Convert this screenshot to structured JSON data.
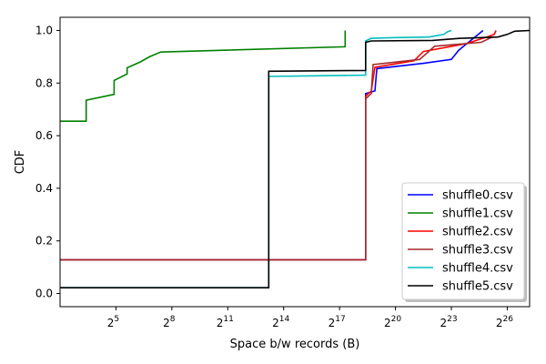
{
  "chart_data": {
    "type": "line",
    "title": "",
    "xlabel": "Space b/w records (B)",
    "ylabel": "CDF",
    "x_scale": "log2",
    "xlim_log2": [
      2.0,
      27.2
    ],
    "ylim": [
      -0.05,
      1.05
    ],
    "x_ticks": [
      {
        "base": "2",
        "exp": "5",
        "log2": 5
      },
      {
        "base": "2",
        "exp": "8",
        "log2": 8
      },
      {
        "base": "2",
        "exp": "11",
        "log2": 11
      },
      {
        "base": "2",
        "exp": "14",
        "log2": 14
      },
      {
        "base": "2",
        "exp": "17",
        "log2": 17
      },
      {
        "base": "2",
        "exp": "20",
        "log2": 20
      },
      {
        "base": "2",
        "exp": "23",
        "log2": 23
      },
      {
        "base": "2",
        "exp": "26",
        "log2": 26
      }
    ],
    "y_ticks": [
      "0.0",
      "0.2",
      "0.4",
      "0.6",
      "0.8",
      "1.0"
    ],
    "y_tick_values": [
      0.0,
      0.2,
      0.4,
      0.6,
      0.8,
      1.0
    ],
    "grid": false,
    "legend_position": "lower-right",
    "series": [
      {
        "name": "shuffle0.csv",
        "color": "#0000ff",
        "points_log2": [
          [
            2.0,
            0.128
          ],
          [
            18.4,
            0.128
          ],
          [
            18.4,
            0.76
          ],
          [
            18.9,
            0.77
          ],
          [
            19.0,
            0.855
          ],
          [
            21.5,
            0.875
          ],
          [
            23.0,
            0.89
          ],
          [
            23.4,
            0.925
          ],
          [
            24.7,
            1.0
          ]
        ]
      },
      {
        "name": "shuffle1.csv",
        "color": "#008000",
        "points_log2": [
          [
            2.0,
            0.655
          ],
          [
            3.4,
            0.655
          ],
          [
            3.4,
            0.735
          ],
          [
            4.9,
            0.757
          ],
          [
            4.9,
            0.81
          ],
          [
            5.6,
            0.835
          ],
          [
            5.6,
            0.858
          ],
          [
            6.3,
            0.88
          ],
          [
            6.8,
            0.9
          ],
          [
            7.4,
            0.918
          ],
          [
            17.3,
            0.938
          ],
          [
            17.3,
            1.0
          ]
        ]
      },
      {
        "name": "shuffle2.csv",
        "color": "#ff0000",
        "points_log2": [
          [
            2.0,
            0.128
          ],
          [
            18.4,
            0.128
          ],
          [
            18.4,
            0.75
          ],
          [
            18.7,
            0.77
          ],
          [
            18.9,
            0.86
          ],
          [
            21.0,
            0.885
          ],
          [
            21.5,
            0.92
          ],
          [
            23.8,
            0.95
          ],
          [
            24.9,
            0.975
          ],
          [
            25.3,
            0.985
          ],
          [
            25.4,
            1.0
          ]
        ]
      },
      {
        "name": "shuffle3.csv",
        "color": "#a52a2a",
        "points_log2": [
          [
            2.0,
            0.128
          ],
          [
            18.4,
            0.128
          ],
          [
            18.4,
            0.74
          ],
          [
            18.7,
            0.76
          ],
          [
            18.8,
            0.87
          ],
          [
            21.3,
            0.89
          ],
          [
            22.1,
            0.94
          ],
          [
            24.6,
            0.955
          ],
          [
            25.2,
            0.975
          ]
        ]
      },
      {
        "name": "shuffle4.csv",
        "color": "#00bfbf",
        "points_log2": [
          [
            2.0,
            0.022
          ],
          [
            13.2,
            0.022
          ],
          [
            13.2,
            0.825
          ],
          [
            18.4,
            0.83
          ],
          [
            18.4,
            0.96
          ],
          [
            18.7,
            0.97
          ],
          [
            20.0,
            0.973
          ],
          [
            21.8,
            0.975
          ],
          [
            22.6,
            0.985
          ],
          [
            22.8,
            0.995
          ],
          [
            23.0,
            1.0
          ]
        ]
      },
      {
        "name": "shuffle5.csv",
        "color": "#000000",
        "points_log2": [
          [
            2.0,
            0.022
          ],
          [
            13.2,
            0.022
          ],
          [
            13.2,
            0.845
          ],
          [
            18.4,
            0.848
          ],
          [
            18.4,
            0.955
          ],
          [
            18.7,
            0.96
          ],
          [
            22.0,
            0.962
          ],
          [
            23.5,
            0.97
          ],
          [
            25.5,
            0.975
          ],
          [
            26.0,
            0.985
          ],
          [
            26.4,
            0.997
          ],
          [
            27.2,
            1.0
          ]
        ]
      }
    ]
  }
}
